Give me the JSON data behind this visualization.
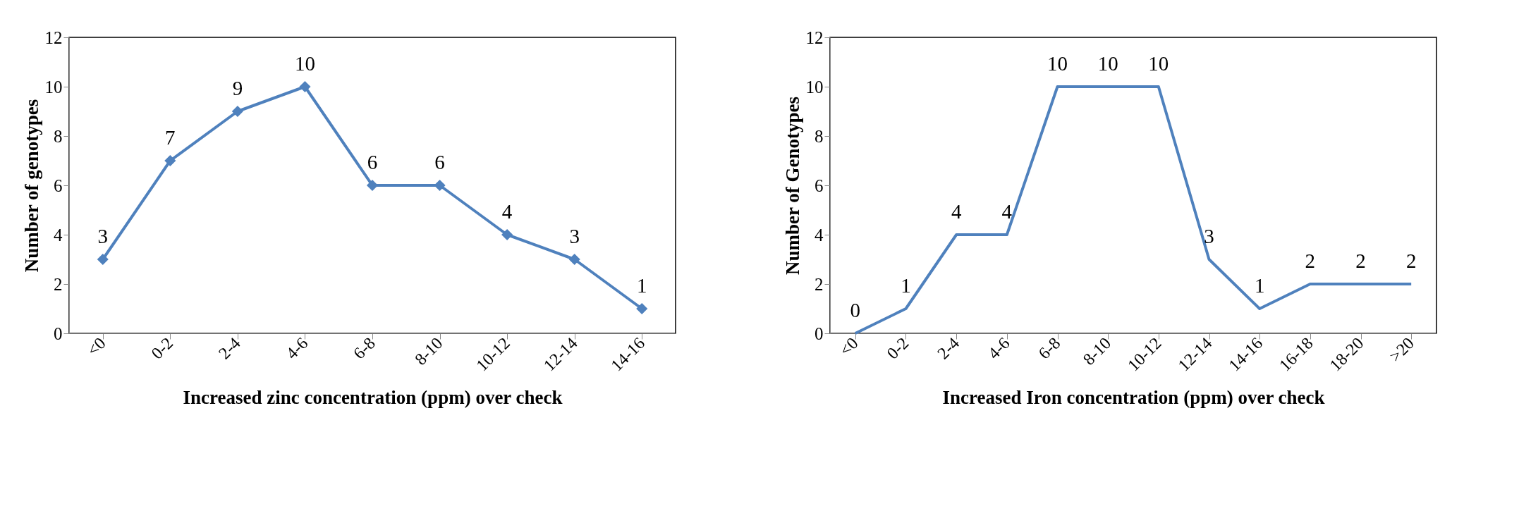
{
  "chart_data": [
    {
      "type": "line",
      "xlabel": "Increased zinc concentration (ppm) over check",
      "ylabel": "Number of genotypes",
      "categories": [
        "<0",
        "0-2",
        "2-4",
        "4-6",
        "6-8",
        "8-10",
        "10-12",
        "12-14",
        "14-16"
      ],
      "series": [
        {
          "color": "#4f81bd",
          "values": [
            3,
            7,
            9,
            10,
            6,
            6,
            4,
            3,
            1
          ]
        }
      ],
      "ylim": [
        0,
        12
      ],
      "yticks": [
        0,
        2,
        4,
        6,
        8,
        10,
        12
      ],
      "marker": "diamond",
      "data_labels": true,
      "grid": false,
      "legend": false
    },
    {
      "type": "line",
      "xlabel": "Increased Iron concentration (ppm) over check",
      "ylabel": "Number of Genotypes",
      "categories": [
        "<0",
        "0-2",
        "2-4",
        "4-6",
        "6-8",
        "8-10",
        "10-12",
        "12-14",
        "14-16",
        "16-18",
        "18-20",
        ">20"
      ],
      "series": [
        {
          "color": "#4f81bd",
          "values": [
            0,
            1,
            4,
            4,
            10,
            10,
            10,
            3,
            1,
            2,
            2,
            2
          ]
        }
      ],
      "ylim": [
        0,
        12
      ],
      "yticks": [
        0,
        2,
        4,
        6,
        8,
        10,
        12
      ],
      "marker": "none",
      "data_labels": true,
      "grid": false,
      "legend": false
    }
  ]
}
